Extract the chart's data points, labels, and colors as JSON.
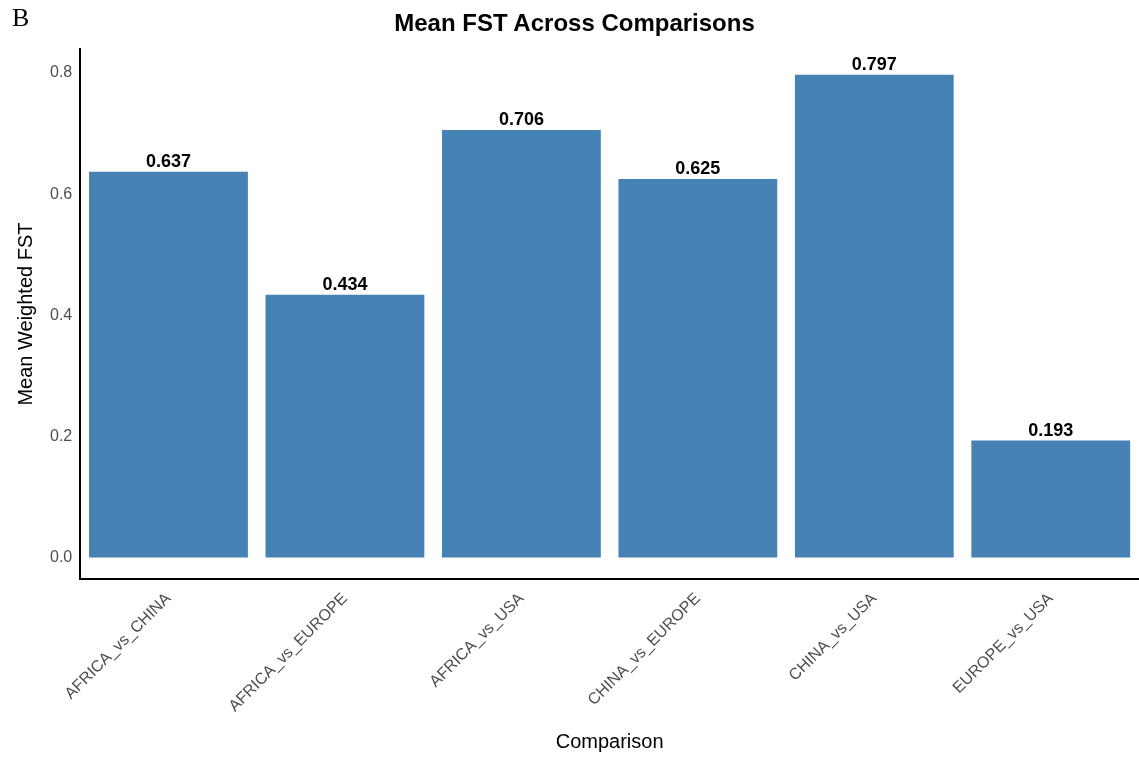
{
  "chart_data": {
    "type": "bar",
    "title": "Mean FST Across Comparisons",
    "xlabel": "Comparison",
    "ylabel": "Mean Weighted FST",
    "categories": [
      "AFRICA_vs_CHINA",
      "AFRICA_vs_EUROPE",
      "AFRICA_vs_USA",
      "CHINA_vs_EUROPE",
      "CHINA_vs_USA",
      "EUROPE_vs_USA"
    ],
    "values": [
      0.637,
      0.434,
      0.706,
      0.625,
      0.797,
      0.193
    ],
    "color": "#4682b4",
    "ylim": [
      -0.036,
      0.84
    ],
    "yticks": [
      {
        "value": 0,
        "label": "0.0"
      },
      {
        "value": 0.2,
        "label": "0.2"
      },
      {
        "value": 0.4,
        "label": "0.4"
      },
      {
        "value": 0.6,
        "label": "0.6"
      },
      {
        "value": 0.8,
        "label": "0.8"
      }
    ],
    "grid": false,
    "legend": false,
    "data_labels": true,
    "annotations": [
      "B"
    ]
  }
}
